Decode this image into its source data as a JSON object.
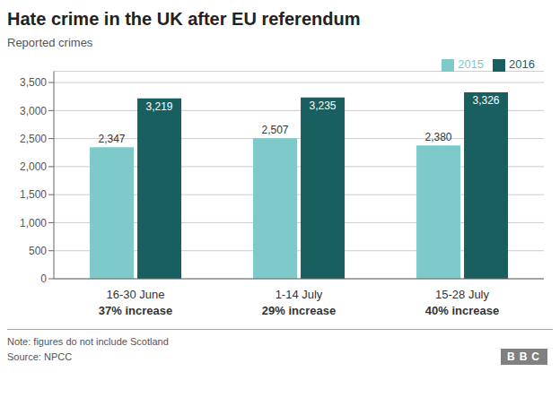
{
  "chart_data": {
    "type": "bar",
    "title": "Hate crime in the UK after EU referendum",
    "ylabel": "Reported crimes",
    "categories": [
      "16-30 June",
      "1-14 July",
      "15-28 July"
    ],
    "series": [
      {
        "name": "2015",
        "color": "#7ecaca",
        "values": [
          2347,
          2507,
          2380
        ],
        "value_labels": [
          "2,347",
          "2,507",
          "2,380"
        ]
      },
      {
        "name": "2016",
        "color": "#1a5f5f",
        "values": [
          3219,
          3235,
          3326
        ],
        "value_labels": [
          "3,219",
          "3,235",
          "3,326"
        ]
      }
    ],
    "ylim": [
      0,
      3700
    ],
    "yticks": [
      0,
      500,
      {
        "value": 1000,
        "label": "1,000"
      },
      {
        "value": 1500,
        "label": "1,500"
      },
      {
        "value": 2000,
        "label": "2,000"
      },
      {
        "value": 2500,
        "label": "2,500"
      },
      {
        "value": 3000,
        "label": "3,000"
      },
      {
        "value": 3500,
        "label": "3,500"
      }
    ],
    "grid": true,
    "legend": "upper right",
    "data_labels": true,
    "annotations": [
      {
        "x": "16-30 June",
        "text": "37% increase"
      },
      {
        "x": "1-14 July",
        "text": "29% increase"
      },
      {
        "x": "15-28 July",
        "text": "40% increase"
      },
      {
        "text": "Note: figures do not include Scotland"
      },
      {
        "text": "Source: NPCC"
      },
      {
        "text": "BBC"
      }
    ]
  }
}
